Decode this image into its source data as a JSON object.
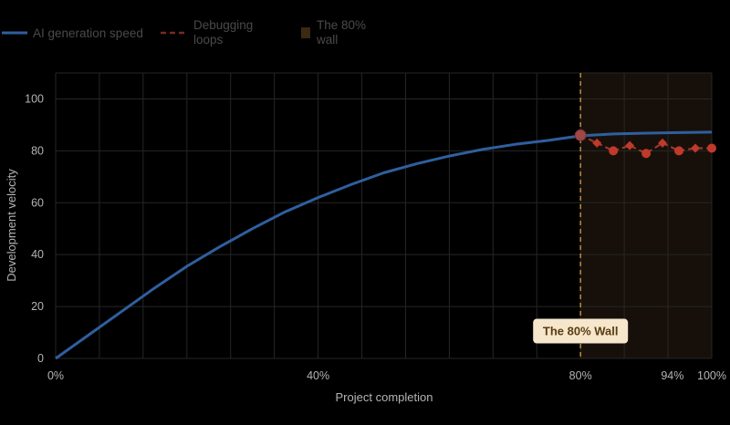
{
  "chart_data": {
    "type": "line",
    "xlabel": "Project completion",
    "ylabel": "Development velocity",
    "xlim": [
      0,
      100
    ],
    "ylim": [
      0,
      110
    ],
    "xticks": [
      {
        "value": 0,
        "label": "0%"
      },
      {
        "value": 40,
        "label": "40%"
      },
      {
        "value": 80,
        "label": "80%"
      },
      {
        "value": 94,
        "label": "94%"
      },
      {
        "value": 100,
        "label": "100%"
      }
    ],
    "yticks": [
      0,
      20,
      40,
      60,
      80,
      100
    ],
    "grid": true,
    "legend_position": "top-left",
    "series": [
      {
        "name": "AI generation speed",
        "style": "solid",
        "color": "#2f5f9e",
        "x": [
          0,
          5,
          10,
          15,
          20,
          25,
          30,
          35,
          40,
          45,
          50,
          55,
          60,
          65,
          70,
          75,
          80,
          85,
          90,
          95,
          100
        ],
        "y": [
          0,
          9,
          18,
          27,
          35.5,
          43,
          50,
          56.5,
          62,
          67,
          71.5,
          75,
          78,
          80.5,
          82.5,
          84,
          85.8,
          86.5,
          86.8,
          87,
          87.2
        ]
      },
      {
        "name": "Debugging loops",
        "style": "dashed",
        "color": "#c0392b",
        "x": [
          80,
          82.5,
          85,
          87.5,
          90,
          92.5,
          95,
          97.5,
          100
        ],
        "y": [
          86,
          83,
          80,
          82,
          79,
          83,
          80,
          81,
          81
        ]
      }
    ],
    "regions": [
      {
        "name": "The 80% wall",
        "x_start": 80,
        "x_end": 100,
        "color": "#17100a"
      }
    ],
    "annotations": [
      {
        "text": "The 80% Wall",
        "x": 80,
        "y": 10
      }
    ]
  }
}
